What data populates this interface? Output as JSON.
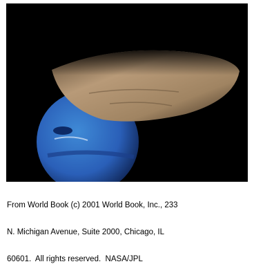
{
  "caption": {
    "lines": [
      "From World Book (c) 2001 World Book, Inc., 233",
      "N. Michigan Avenue, Suite 2000, Chicago, IL",
      "60601.  All rights reserved.  NASA/JPL"
    ]
  }
}
